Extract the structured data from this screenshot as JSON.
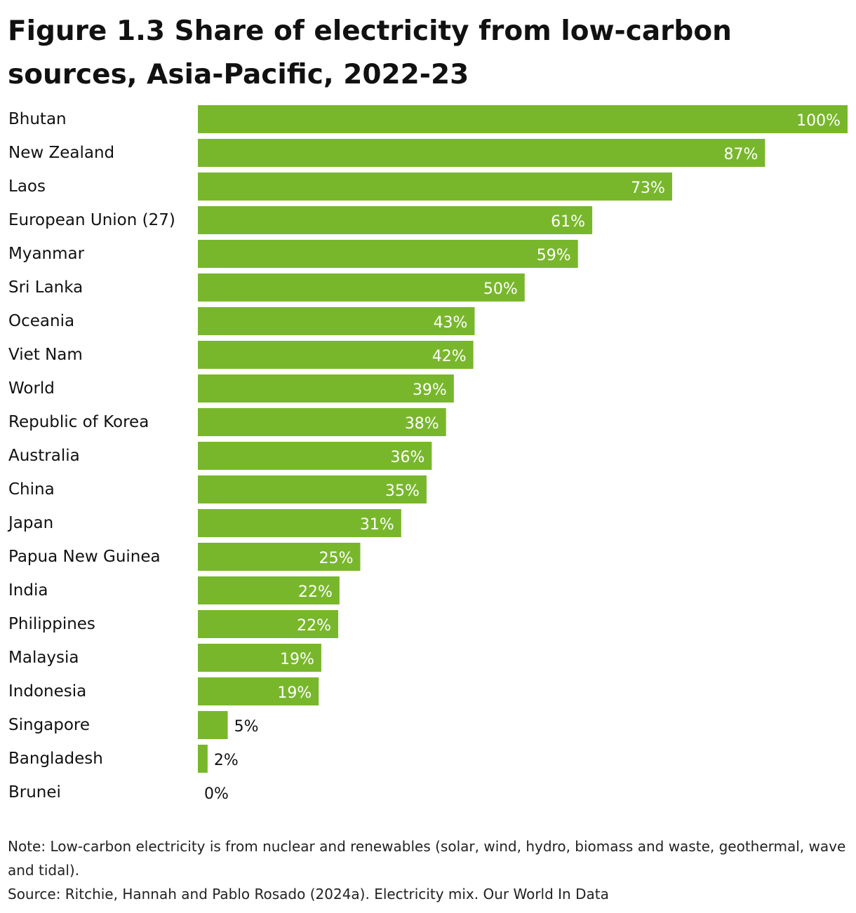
{
  "chart_data": {
    "type": "bar",
    "orientation": "horizontal",
    "title": "Figure 1.3 Share of electricity from low-carbon sources, Asia-Pacific, 2022-23",
    "categories": [
      "Bhutan",
      "New Zealand",
      "Laos",
      "European Union (27)",
      "Myanmar",
      "Sri Lanka",
      "Oceania",
      "Viet Nam",
      "World",
      "Republic of Korea",
      "Australia",
      "China",
      "Japan",
      "Papua New Guinea",
      "India",
      "Philippines",
      "Malaysia",
      "Indonesia",
      "Singapore",
      "Bangladesh",
      "Brunei"
    ],
    "values": [
      100,
      87.3,
      73,
      60.7,
      58.5,
      50.3,
      42.6,
      42.4,
      39.4,
      38.2,
      36,
      35.2,
      31.3,
      25,
      21.8,
      21.6,
      19,
      18.6,
      4.6,
      1.5,
      0
    ],
    "value_labels": [
      "100%",
      "87%",
      "73%",
      "61%",
      "59%",
      "50%",
      "43%",
      "42%",
      "39%",
      "38%",
      "36%",
      "35%",
      "31%",
      "25%",
      "22%",
      "22%",
      "19%",
      "19%",
      "5%",
      "2%",
      "0%"
    ],
    "xlim": [
      0,
      100
    ],
    "bar_color": "#78b72c",
    "grid": false,
    "legend": "none"
  },
  "notes": {
    "note": "Note: Low-carbon electricity is from nuclear and renewables (solar, wind, hydro, biomass and waste, geothermal, wave and tidal).",
    "source": "Source: Ritchie, Hannah and Pablo Rosado (2024a). Electricity mix. Our World In Data"
  }
}
